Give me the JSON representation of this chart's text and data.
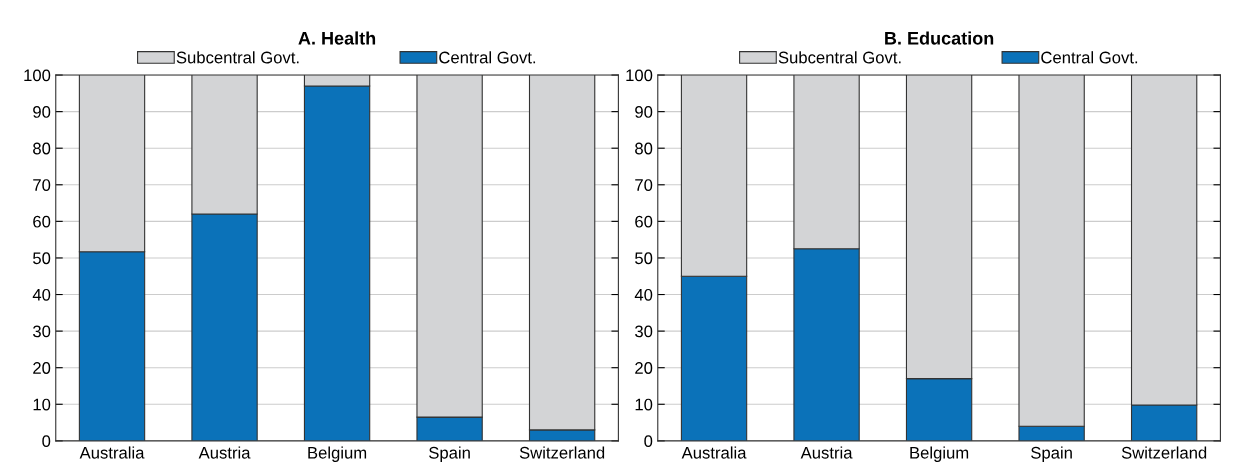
{
  "chart_data": [
    {
      "type": "bar",
      "title": "A. Health",
      "categories": [
        "Australia",
        "Austria",
        "Belgium",
        "Spain",
        "Switzerland"
      ],
      "stacked": true,
      "ylim": [
        0,
        100
      ],
      "yticks": [
        0,
        10,
        20,
        30,
        40,
        50,
        60,
        70,
        80,
        90,
        100
      ],
      "grid": "y",
      "legend": "top",
      "series": [
        {
          "name": "Central Govt.",
          "color": "#0b72b9",
          "values": [
            51.7,
            62,
            97,
            6.5,
            3
          ]
        },
        {
          "name": "Subcentral Govt.",
          "color": "#d3d4d6",
          "values": [
            48.3,
            38,
            3,
            93.5,
            97
          ]
        }
      ]
    },
    {
      "type": "bar",
      "title": "B. Education",
      "categories": [
        "Australia",
        "Austria",
        "Belgium",
        "Spain",
        "Switzerland"
      ],
      "stacked": true,
      "ylim": [
        0,
        100
      ],
      "yticks": [
        0,
        10,
        20,
        30,
        40,
        50,
        60,
        70,
        80,
        90,
        100
      ],
      "grid": "y",
      "legend": "top",
      "series": [
        {
          "name": "Central Govt.",
          "color": "#0b72b9",
          "values": [
            45,
            52.5,
            17,
            4,
            9.8
          ]
        },
        {
          "name": "Subcentral Govt.",
          "color": "#d3d4d6",
          "values": [
            55,
            47.5,
            83,
            96,
            90.2
          ]
        }
      ]
    }
  ]
}
